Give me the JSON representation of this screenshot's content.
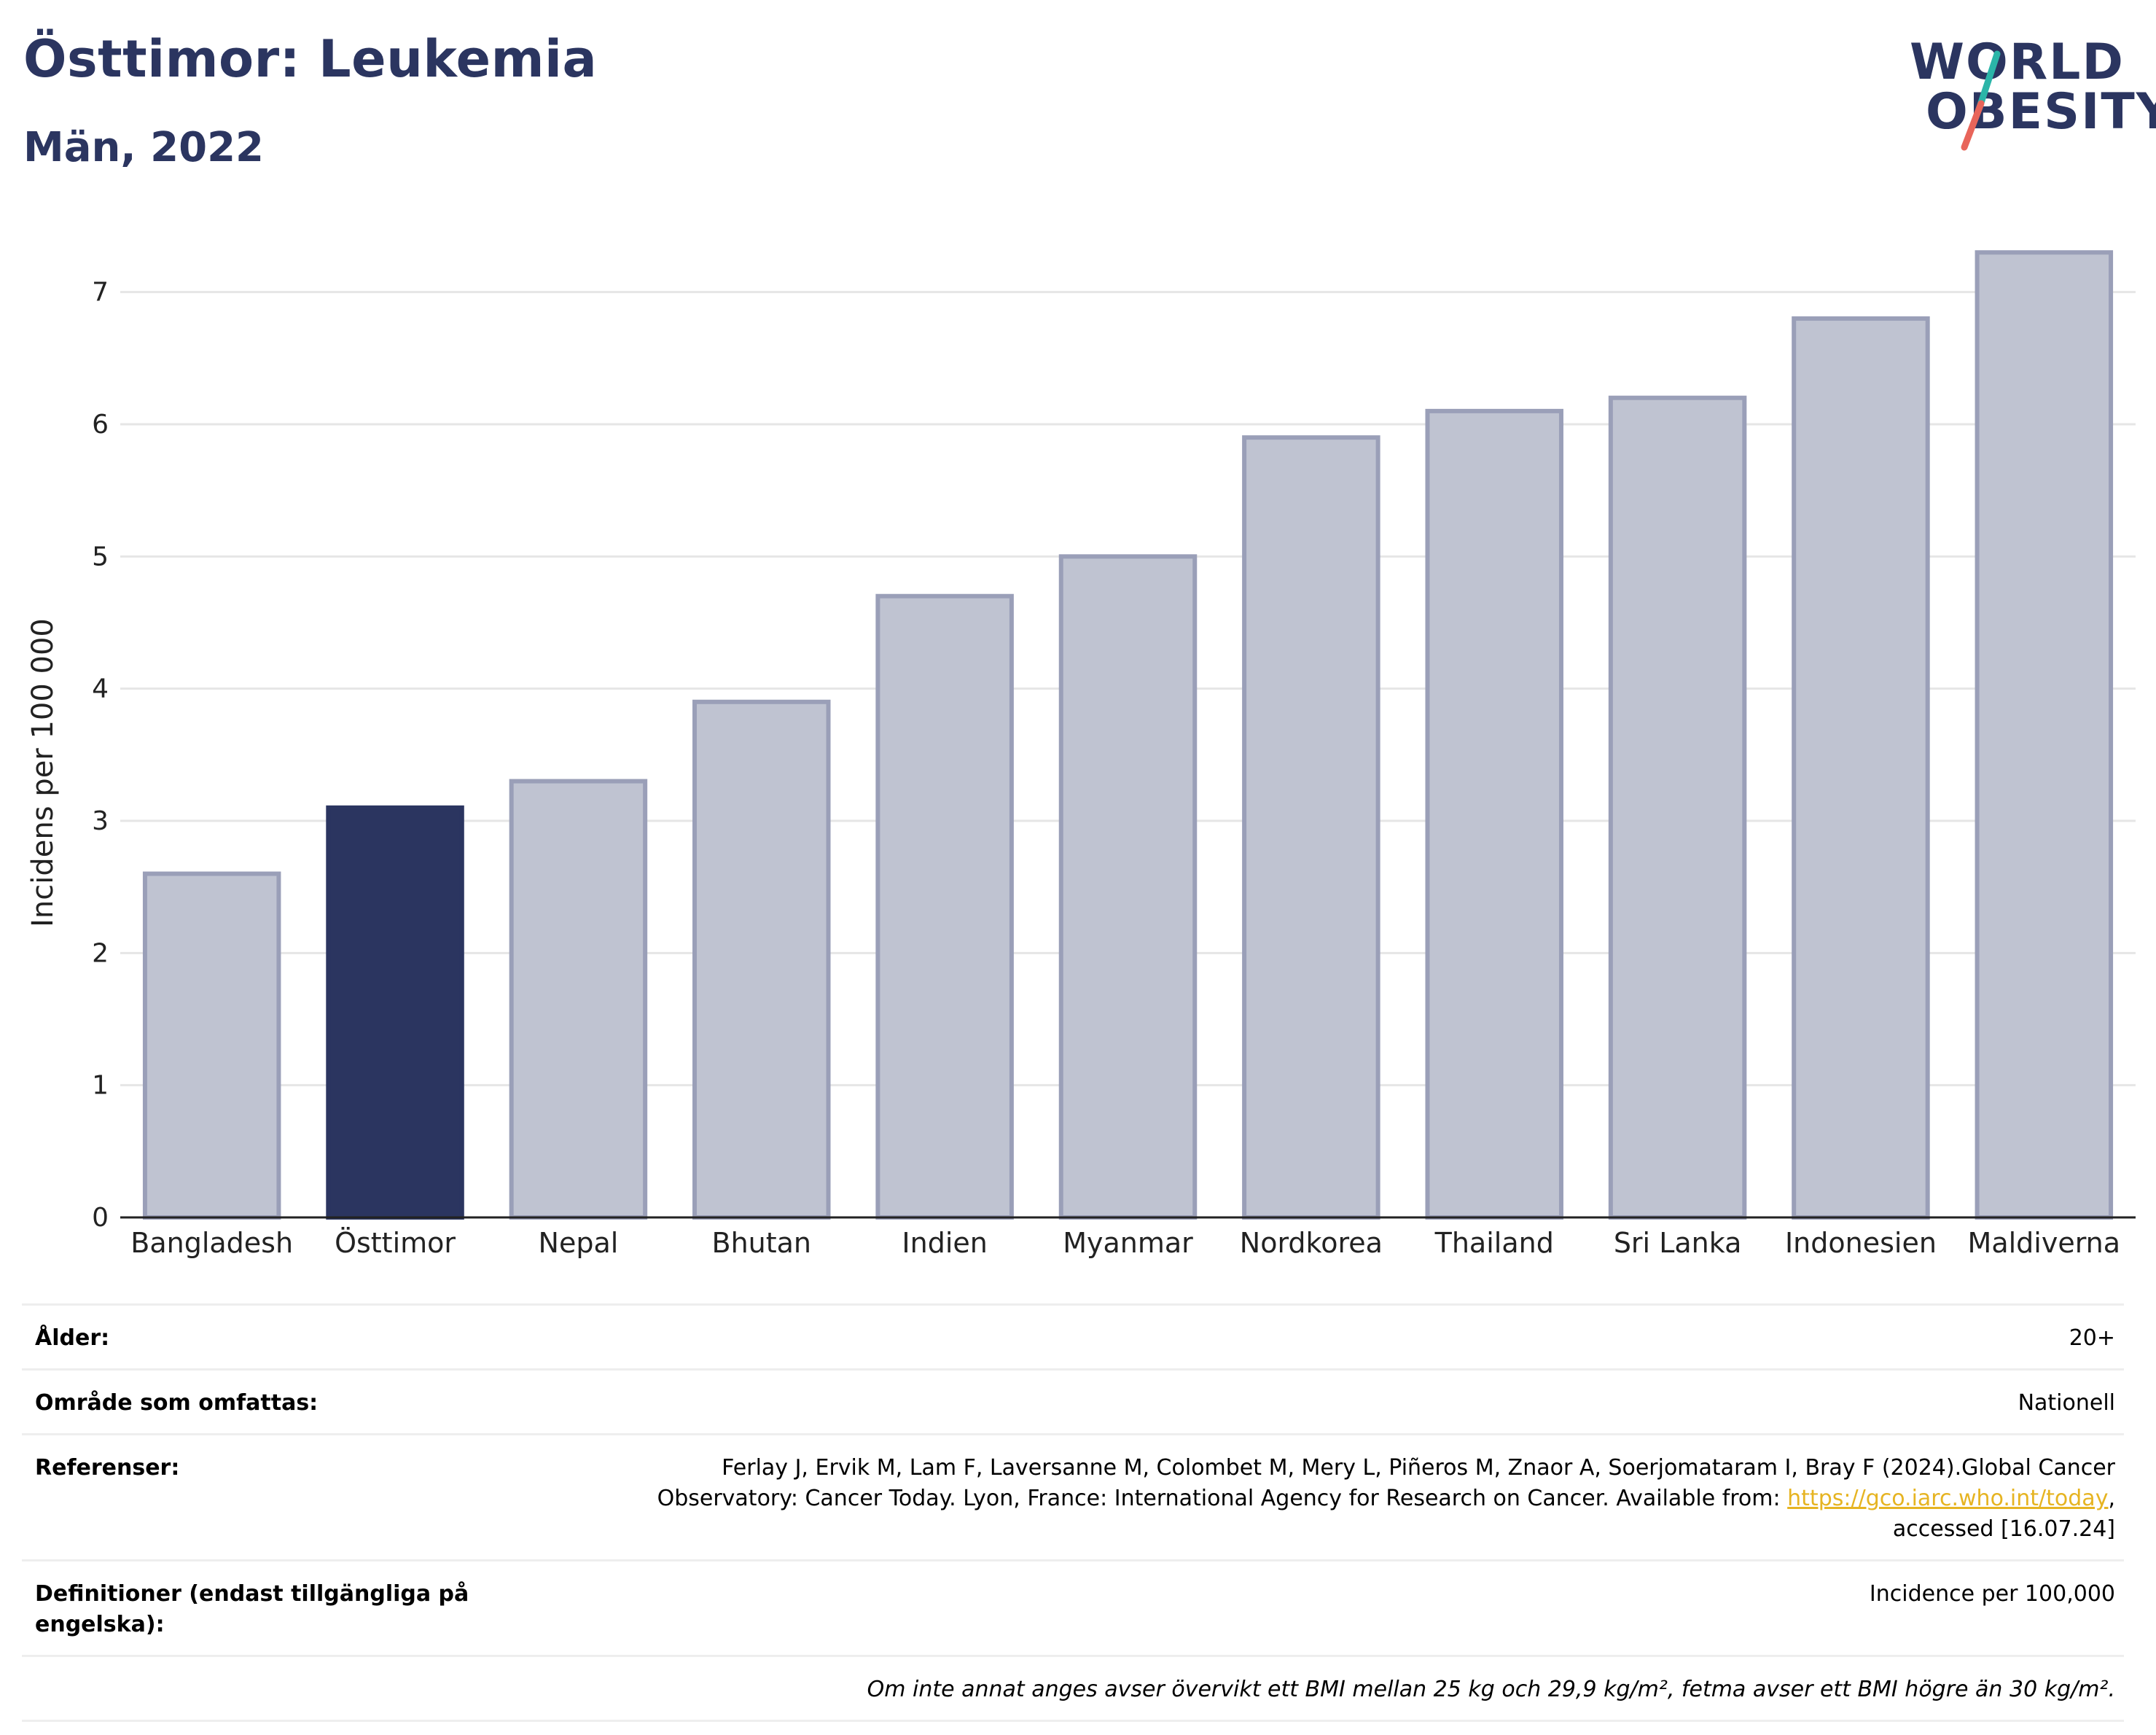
{
  "header": {
    "title": "Östtimor: Leukemia",
    "subtitle": "Män, 2022"
  },
  "logo": {
    "line1": "WORLD",
    "line2": "OBESITY",
    "colors": {
      "text": "#2b3560",
      "slash_top": "#2bb5a8",
      "slash_bottom": "#e8655a"
    }
  },
  "chart_data": {
    "type": "bar",
    "categories": [
      "Bangladesh",
      "Östtimor",
      "Nepal",
      "Bhutan",
      "Indien",
      "Myanmar",
      "Nordkorea",
      "Thailand",
      "Sri Lanka",
      "Indonesien",
      "Maldiverna"
    ],
    "values": [
      2.6,
      3.1,
      3.3,
      3.9,
      4.7,
      5.0,
      5.9,
      6.1,
      6.2,
      6.8,
      7.3
    ],
    "highlight": "Östtimor",
    "ylabel": "Incidens per 100 000",
    "ylim": [
      0,
      7.5
    ],
    "yticks": [
      0,
      1,
      2,
      3,
      4,
      5,
      6,
      7
    ],
    "grid": true,
    "colors": {
      "bar": "#bfc3d1",
      "bar_border": "#9a9fb8",
      "highlight": "#2b3560",
      "grid": "#e6e6e6",
      "axis": "#222222"
    }
  },
  "meta": {
    "age_label": "Ålder:",
    "age_value": "20+",
    "area_label": "Område som omfattas:",
    "area_value": "Nationell",
    "references_label": "Referenser:",
    "references_text_1": "Ferlay J, Ervik M, Lam F, Laversanne M, Colombet M, Mery L, Piñeros M, Znaor A, Soerjomataram I, Bray F (2024).Global Cancer Observatory: Cancer Today. Lyon, France: International Agency for Research on Cancer. Available from: ",
    "references_link": "https://gco.iarc.who.int/today",
    "references_text_2": ", accessed [16.07.24]",
    "definitions_label": "Definitioner (endast tillgängliga på engelska):",
    "definitions_value": "Incidence per 100,000",
    "note": "Om inte annat anges avser övervikt ett BMI mellan 25 kg och 29,9 kg/m², fetma avser ett BMI högre än 30 kg/m²."
  }
}
